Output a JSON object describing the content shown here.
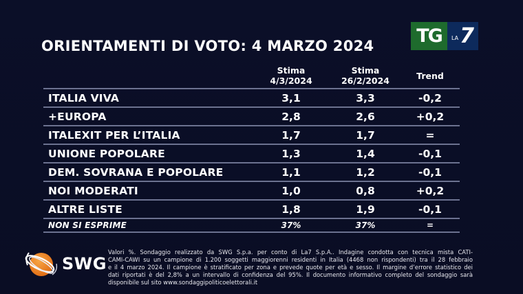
{
  "title": "ORIENTAMENTI DI VOTO: 4 MARZO 2024",
  "logos": {
    "broadcaster": {
      "tg": "TG",
      "la": "LA",
      "seven": "7"
    },
    "pollster": "SWG"
  },
  "table": {
    "columns": [
      {
        "line1": "Stima",
        "line2": "4/3/2024"
      },
      {
        "line1": "Stima",
        "line2": "26/2/2024"
      },
      {
        "line1": "Trend",
        "line2": ""
      }
    ],
    "rows": [
      {
        "party": "ITALIA VIVA",
        "current": "3,1",
        "previous": "3,3",
        "trend": "-0,2"
      },
      {
        "party": "+EUROPA",
        "current": "2,8",
        "previous": "2,6",
        "trend": "+0,2"
      },
      {
        "party": "ITALEXIT PER L’ITALIA",
        "current": "1,7",
        "previous": "1,7",
        "trend": "="
      },
      {
        "party": "UNIONE POPOLARE",
        "current": "1,3",
        "previous": "1,4",
        "trend": "-0,1"
      },
      {
        "party": "DEM. SOVRANA E POPOLARE",
        "current": "1,1",
        "previous": "1,2",
        "trend": "-0,1"
      },
      {
        "party": "NOI MODERATI",
        "current": "1,0",
        "previous": "0,8",
        "trend": "+0,2"
      },
      {
        "party": "ALTRE LISTE",
        "current": "1,8",
        "previous": "1,9",
        "trend": "-0,1"
      },
      {
        "party": "NON SI ESPRIME",
        "current": "37%",
        "previous": "37%",
        "trend": "="
      }
    ]
  },
  "footnote": {
    "lines": [
      "Valori %. Sondaggio realizzato da SWG S.p.a. per conto di La7 S.p.A.. Indagine condotta con tecnica mista CATI-",
      "CAMI-CAWI su un campione di 1.200 soggetti maggiorenni residenti in Italia (4468 non rispondenti) tra il 28 febbraio",
      "e il 4 marzo 2024. Il campione è stratificato per zona e prevede quote per età e sesso. Il margine d’errore statistico dei",
      "dati riportati è del 2,8% a un intervallo di confidenza del 95%. Il documento informativo completo del sondaggio sarà",
      "disponibile sul sito www.sondaggipoliticoelettorali.it"
    ]
  },
  "colors": {
    "background": "#0a0e26",
    "tg_green": "#1e6b2d",
    "la7_blue": "#0d2a5c",
    "swg_orange": "#f08a24",
    "rule": "#6c7290"
  }
}
